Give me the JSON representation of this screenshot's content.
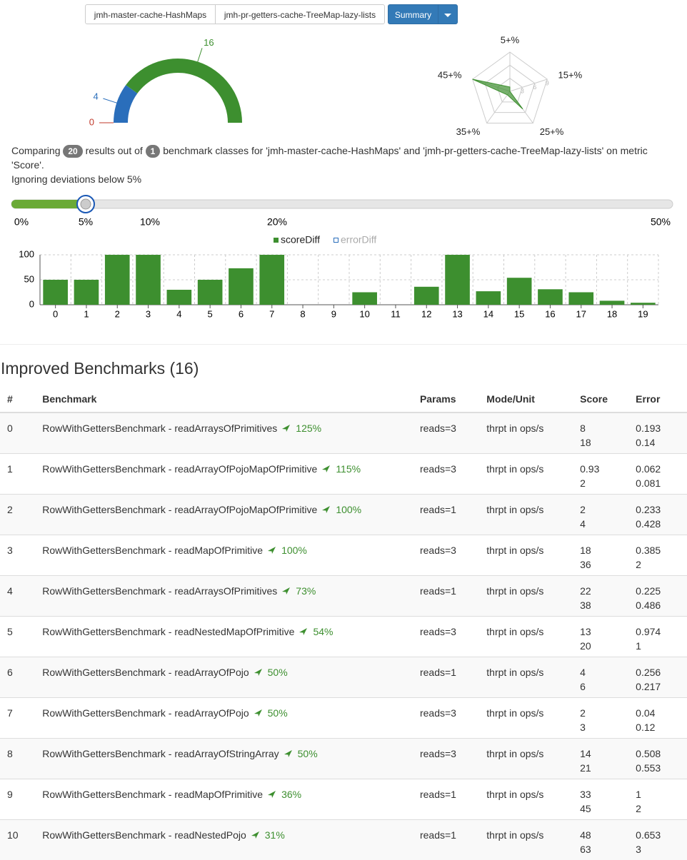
{
  "toolbar": {
    "buttons": [
      "jmh-master-cache-HashMaps",
      "jmh-pr-getters-cache-TreeMap-lazy-lists"
    ],
    "action": "Summary"
  },
  "gauge": {
    "values": [
      0,
      4,
      16
    ],
    "colors": [
      "#c0392b",
      "#2a6ebb",
      "#3d8f2f"
    ]
  },
  "radar": {
    "axes": [
      "5+%",
      "15+%",
      "25+%",
      "35+%",
      "45+%"
    ],
    "values": [
      1,
      0,
      5,
      1,
      9
    ],
    "rlim": [
      0,
      9
    ],
    "rticks": [
      3,
      6,
      9
    ],
    "color": "#3d8f2f"
  },
  "summary": {
    "before": "Comparing",
    "results": 20,
    "middle": "results out of",
    "classes": 1,
    "after": "benchmark classes for 'jmh-master-cache-HashMaps' and 'jmh-pr-getters-cache-TreeMap-lazy-lists' on metric 'Score'.",
    "note": "Ignoring deviations below 5%"
  },
  "slider": {
    "value": 5,
    "ticks": [
      {
        "value": 0,
        "label": "0%"
      },
      {
        "value": 5,
        "label": "5%"
      },
      {
        "value": 10,
        "label": "10%"
      },
      {
        "value": 20,
        "label": "20%"
      },
      {
        "value": 50,
        "label": "50%"
      }
    ]
  },
  "chart_data": {
    "type": "bar",
    "categories": [
      "0",
      "1",
      "2",
      "3",
      "4",
      "5",
      "6",
      "7",
      "8",
      "9",
      "10",
      "11",
      "12",
      "13",
      "14",
      "15",
      "16",
      "17",
      "18",
      "19"
    ],
    "series": [
      {
        "name": "scoreDiff",
        "color": "#3d8f2f",
        "values": [
          50,
          50,
          100,
          100,
          30,
          50,
          73,
          100,
          0,
          0,
          25,
          0,
          36,
          100,
          27,
          54,
          31,
          25,
          8,
          4
        ]
      },
      {
        "name": "errorDiff",
        "color": "#2a6ebb",
        "values": null
      }
    ],
    "ylim": [
      0,
      100
    ],
    "yticks": [
      0,
      50,
      100
    ],
    "grid": true
  },
  "table": {
    "title": "Improved Benchmarks (16)",
    "columns": [
      "#",
      "Benchmark",
      "Params",
      "Mode/Unit",
      "Score",
      "Error"
    ],
    "rows": [
      {
        "index": 0,
        "benchmark": "RowWithGettersBenchmark - readArraysOfPrimitives",
        "change": "125%",
        "params": "reads=3",
        "mode": "thrpt in ops/s",
        "score": [
          8,
          18
        ],
        "error": [
          0.193,
          0.14
        ]
      },
      {
        "index": 1,
        "benchmark": "RowWithGettersBenchmark - readArrayOfPojoMapOfPrimitive",
        "change": "115%",
        "params": "reads=3",
        "mode": "thrpt in ops/s",
        "score": [
          0.93,
          2
        ],
        "error": [
          0.062,
          0.081
        ]
      },
      {
        "index": 2,
        "benchmark": "RowWithGettersBenchmark - readArrayOfPojoMapOfPrimitive",
        "change": "100%",
        "params": "reads=1",
        "mode": "thrpt in ops/s",
        "score": [
          2,
          4
        ],
        "error": [
          0.233,
          0.428
        ]
      },
      {
        "index": 3,
        "benchmark": "RowWithGettersBenchmark - readMapOfPrimitive",
        "change": "100%",
        "params": "reads=3",
        "mode": "thrpt in ops/s",
        "score": [
          18,
          36
        ],
        "error": [
          0.385,
          2
        ]
      },
      {
        "index": 4,
        "benchmark": "RowWithGettersBenchmark - readArraysOfPrimitives",
        "change": "73%",
        "params": "reads=1",
        "mode": "thrpt in ops/s",
        "score": [
          22,
          38
        ],
        "error": [
          0.225,
          0.486
        ]
      },
      {
        "index": 5,
        "benchmark": "RowWithGettersBenchmark - readNestedMapOfPrimitive",
        "change": "54%",
        "params": "reads=3",
        "mode": "thrpt in ops/s",
        "score": [
          13,
          20
        ],
        "error": [
          0.974,
          1
        ]
      },
      {
        "index": 6,
        "benchmark": "RowWithGettersBenchmark - readArrayOfPojo",
        "change": "50%",
        "params": "reads=1",
        "mode": "thrpt in ops/s",
        "score": [
          4,
          6
        ],
        "error": [
          0.256,
          0.217
        ]
      },
      {
        "index": 7,
        "benchmark": "RowWithGettersBenchmark - readArrayOfPojo",
        "change": "50%",
        "params": "reads=3",
        "mode": "thrpt in ops/s",
        "score": [
          2,
          3
        ],
        "error": [
          0.04,
          0.12
        ]
      },
      {
        "index": 8,
        "benchmark": "RowWithGettersBenchmark - readArrayOfStringArray",
        "change": "50%",
        "params": "reads=3",
        "mode": "thrpt in ops/s",
        "score": [
          14,
          21
        ],
        "error": [
          0.508,
          0.553
        ]
      },
      {
        "index": 9,
        "benchmark": "RowWithGettersBenchmark - readMapOfPrimitive",
        "change": "36%",
        "params": "reads=1",
        "mode": "thrpt in ops/s",
        "score": [
          33,
          45
        ],
        "error": [
          1,
          2
        ]
      },
      {
        "index": 10,
        "benchmark": "RowWithGettersBenchmark - readNestedPojo",
        "change": "31%",
        "params": "reads=1",
        "mode": "thrpt in ops/s",
        "score": [
          48,
          63
        ],
        "error": [
          0.653,
          3
        ]
      }
    ]
  }
}
